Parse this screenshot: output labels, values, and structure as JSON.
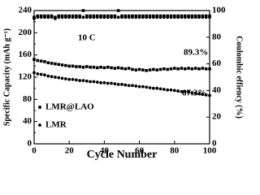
{
  "chart_data": {
    "type": "scatter",
    "x": [
      0,
      2,
      4,
      6,
      8,
      10,
      12,
      14,
      16,
      18,
      20,
      22,
      24,
      26,
      28,
      30,
      32,
      34,
      36,
      38,
      40,
      42,
      44,
      46,
      48,
      50,
      52,
      54,
      56,
      58,
      60,
      62,
      64,
      66,
      68,
      70,
      72,
      74,
      76,
      78,
      80,
      82,
      84,
      86,
      88,
      90,
      92,
      94,
      96,
      98,
      100
    ],
    "xlabel": "Cycle Number",
    "ylabel": "Specific Capacity (mAh g⁻¹)",
    "y2label": "Coulombic effiency (%)",
    "xlim": [
      0,
      100
    ],
    "xticks": [
      0,
      20,
      40,
      60,
      80,
      100
    ],
    "ylim": [
      0,
      240
    ],
    "yticks": [
      0,
      20,
      40,
      60,
      80,
      100,
      120,
      140,
      160,
      180,
      200,
      220,
      240
    ],
    "y2lim": [
      0,
      100
    ],
    "y2ticks": [
      0,
      20,
      40,
      60,
      80,
      100
    ],
    "legend": "lower left",
    "annotations": [
      "10 C",
      "89.3%",
      "67.3%"
    ],
    "series": [
      {
        "name": "LMR@LAO",
        "color": "#000000",
        "marker": "square",
        "values": [
          152,
          150,
          149,
          148,
          146,
          145,
          144,
          143,
          142,
          141,
          140,
          140,
          139,
          139,
          138,
          139,
          138,
          138,
          137,
          138,
          137,
          138,
          137,
          136,
          137,
          136,
          135,
          136,
          134,
          133,
          134,
          133,
          132,
          133,
          134,
          133,
          134,
          135,
          134,
          135,
          136,
          135,
          136,
          135,
          136,
          135,
          136,
          135,
          136,
          135,
          135
        ]
      },
      {
        "name": "LMR",
        "color": "#000000",
        "marker": "circle",
        "values": [
          128,
          126,
          125,
          124,
          122,
          121,
          120,
          119,
          118,
          117,
          116,
          116,
          115,
          114,
          114,
          113,
          112,
          112,
          111,
          110,
          110,
          109,
          109,
          108,
          107,
          107,
          106,
          105,
          105,
          104,
          103,
          103,
          102,
          101,
          100,
          100,
          99,
          98,
          97,
          97,
          96,
          95,
          94,
          94,
          93,
          92,
          91,
          90,
          89,
          88,
          87
        ]
      },
      {
        "name": "LMR@LAO",
        "color": "#000000",
        "marker": "square",
        "axis": "y2",
        "values": [
          95,
          96,
          96,
          96,
          96,
          96,
          95,
          96,
          96,
          96,
          96,
          96,
          96,
          96,
          100,
          96,
          96,
          96,
          96,
          96,
          96,
          96,
          96,
          96,
          100,
          96,
          96,
          96,
          96,
          96,
          96,
          96,
          96,
          96,
          96,
          96,
          96,
          96,
          96,
          96,
          96,
          96,
          96,
          96,
          96,
          96,
          96,
          96,
          96,
          96,
          96
        ]
      },
      {
        "name": "LMR",
        "color": "#000000",
        "marker": "circle",
        "axis": "y2",
        "values": [
          94,
          95,
          95,
          95,
          95,
          95,
          94,
          95,
          95,
          95,
          95,
          95,
          95,
          95,
          95,
          95,
          95,
          95,
          95,
          95,
          95,
          95,
          95,
          95,
          95,
          95,
          95,
          95,
          95,
          95,
          95,
          95,
          95,
          95,
          95,
          95,
          95,
          95,
          95,
          95,
          95,
          95,
          95,
          95,
          95,
          95,
          95,
          95,
          95,
          95,
          95
        ]
      }
    ]
  }
}
